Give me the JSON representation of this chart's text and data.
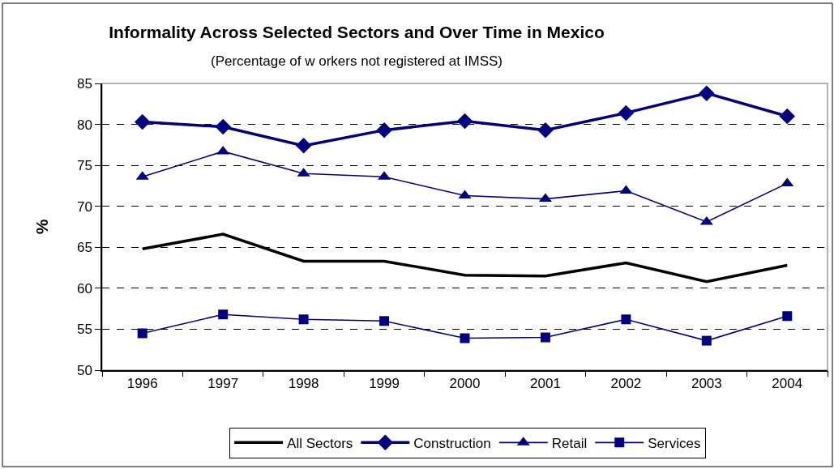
{
  "chart_data": {
    "type": "line",
    "title": "Informality Across Selected Sectors and Over Time in Mexico",
    "subtitle": "(Percentage of w orkers not registered at IMSS)",
    "ylabel": "%",
    "categories": [
      "1996",
      "1997",
      "1998",
      "1999",
      "2000",
      "2001",
      "2002",
      "2003",
      "2004"
    ],
    "series": [
      {
        "name": "All Sectors",
        "color": "#000000",
        "marker": "none",
        "values": [
          64.8,
          66.6,
          63.3,
          63.3,
          61.6,
          61.5,
          63.1,
          60.8,
          62.8
        ]
      },
      {
        "name": "Construction",
        "color": "#000080",
        "marker": "diamond",
        "values": [
          80.3,
          79.7,
          77.4,
          79.3,
          80.4,
          79.3,
          81.4,
          83.8,
          81.0
        ]
      },
      {
        "name": "Retail",
        "color": "#000080",
        "marker": "triangle",
        "values": [
          73.6,
          76.7,
          74.0,
          73.6,
          71.3,
          70.9,
          71.9,
          68.1,
          72.8
        ]
      },
      {
        "name": "Services",
        "color": "#000080",
        "marker": "square",
        "values": [
          54.5,
          56.8,
          56.2,
          56.0,
          53.9,
          54.0,
          56.2,
          53.6,
          56.6
        ]
      }
    ],
    "ylim": [
      50,
      85
    ],
    "yticks": [
      50,
      55,
      60,
      65,
      70,
      75,
      80,
      85
    ],
    "grid": "y",
    "legend": "bottom",
    "line_style": "solid"
  }
}
